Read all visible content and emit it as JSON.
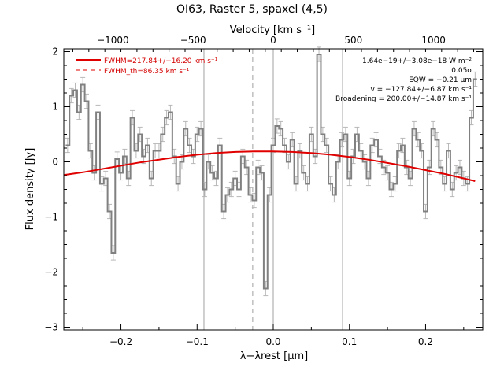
{
  "chart_data": {
    "type": "line",
    "title": "OI63, Raster 5, spaxel (4,5)",
    "xlabel": "λ−λrest [μm]",
    "ylabel": "Flux density [Jy]",
    "top_axis_label": "Velocity [km s⁻¹]",
    "xlim": [
      -0.275,
      0.275
    ],
    "ylim": [
      -3.05,
      2.05
    ],
    "x_ticks": [
      "−0.2",
      "−0.1",
      "0.0",
      "0.1",
      "0.2"
    ],
    "x_tick_values": [
      -0.2,
      -0.1,
      0.0,
      0.1,
      0.2
    ],
    "y_ticks": [
      "−3",
      "−2",
      "−1",
      "0",
      "1",
      "2"
    ],
    "y_tick_values": [
      -3,
      -2,
      -1,
      0,
      1,
      2
    ],
    "top_ticks": [
      "−1000",
      "−500",
      "0",
      "500",
      "1000"
    ],
    "top_tick_values": [
      -1000,
      -500,
      0,
      500,
      1000
    ],
    "velocity_per_um": 4750,
    "vertical_lines": [
      -0.091,
      0.0,
      0.091
    ],
    "dashed_vertical_line": -0.027,
    "grid": false,
    "legend_position": "top-left",
    "legend": [
      {
        "label": "FWHM=217.84+/−16.20 km s⁻¹",
        "style": "solid",
        "color": "#d40000"
      },
      {
        "label": "FWHM_th=86.35 km s⁻¹",
        "style": "dashed",
        "color": "#d40000"
      }
    ],
    "annotations": [
      "1.64e−19+/−3.08e−18 W m⁻²",
      "0.05σ",
      "EQW = −0.21 μm",
      "v = −127.84+/−6.87 km s⁻¹",
      "Broadening = 200.00+/−14.87 km s⁻¹"
    ],
    "series": [
      {
        "kind": "step-with-errorbars",
        "color": "#808080",
        "error": 0.13,
        "x": [
          -0.27,
          -0.265,
          -0.26,
          -0.255,
          -0.25,
          -0.245,
          -0.24,
          -0.235,
          -0.23,
          -0.225,
          -0.22,
          -0.215,
          -0.21,
          -0.205,
          -0.2,
          -0.195,
          -0.19,
          -0.185,
          -0.18,
          -0.175,
          -0.17,
          -0.165,
          -0.16,
          -0.155,
          -0.15,
          -0.145,
          -0.14,
          -0.135,
          -0.13,
          -0.125,
          -0.12,
          -0.115,
          -0.11,
          -0.105,
          -0.1,
          -0.095,
          -0.09,
          -0.085,
          -0.08,
          -0.075,
          -0.07,
          -0.065,
          -0.06,
          -0.055,
          -0.05,
          -0.045,
          -0.04,
          -0.035,
          -0.03,
          -0.025,
          -0.02,
          -0.015,
          -0.01,
          -0.005,
          0.0,
          0.005,
          0.01,
          0.015,
          0.02,
          0.025,
          0.03,
          0.035,
          0.04,
          0.045,
          0.05,
          0.055,
          0.06,
          0.065,
          0.07,
          0.075,
          0.08,
          0.085,
          0.09,
          0.095,
          0.1,
          0.105,
          0.11,
          0.115,
          0.12,
          0.125,
          0.13,
          0.135,
          0.14,
          0.145,
          0.15,
          0.155,
          0.16,
          0.165,
          0.17,
          0.175,
          0.18,
          0.185,
          0.19,
          0.195,
          0.2,
          0.205,
          0.21,
          0.215,
          0.22,
          0.225,
          0.23,
          0.235,
          0.24,
          0.245,
          0.25,
          0.255,
          0.26,
          0.265
        ],
        "values": [
          0.3,
          1.2,
          1.3,
          0.9,
          1.4,
          1.1,
          0.2,
          -0.2,
          0.9,
          -0.4,
          -0.3,
          -0.9,
          -1.65,
          0.05,
          -0.2,
          0.1,
          -0.3,
          0.8,
          0.2,
          0.5,
          0.1,
          0.3,
          -0.3,
          0.2,
          0.2,
          0.5,
          0.8,
          0.9,
          0.1,
          -0.4,
          0.0,
          0.6,
          0.3,
          0.1,
          0.5,
          0.6,
          -0.5,
          0.0,
          -0.2,
          -0.3,
          0.3,
          -0.9,
          -0.6,
          -0.5,
          -0.3,
          -0.5,
          0.1,
          -0.1,
          -0.6,
          -0.7,
          -0.1,
          -0.2,
          -2.3,
          -0.6,
          0.3,
          0.65,
          0.6,
          0.3,
          0.0,
          0.4,
          -0.4,
          0.2,
          -0.2,
          -0.4,
          0.5,
          0.1,
          1.95,
          0.5,
          0.3,
          -0.4,
          -0.6,
          0.0,
          0.4,
          0.5,
          -0.3,
          0.1,
          0.5,
          0.2,
          0.0,
          -0.3,
          0.3,
          0.4,
          0.1,
          -0.1,
          -0.2,
          -0.5,
          -0.4,
          0.2,
          0.3,
          -0.1,
          -0.3,
          0.6,
          0.4,
          0.2,
          -0.9,
          -0.1,
          0.6,
          0.4,
          -0.1,
          -0.4,
          0.2,
          -0.5,
          -0.2,
          -0.1,
          -0.3,
          -0.4,
          0.8,
          1.5
        ]
      },
      {
        "kind": "gaussian-fit",
        "color": "#e00000",
        "x": [
          -0.275,
          -0.25,
          -0.225,
          -0.2,
          -0.175,
          -0.15,
          -0.125,
          -0.1,
          -0.075,
          -0.05,
          -0.025,
          0.0,
          0.025,
          0.05,
          0.075,
          0.1,
          0.125,
          0.15,
          0.175,
          0.2,
          0.225,
          0.25,
          0.265
        ],
        "values": [
          -0.24,
          -0.19,
          -0.13,
          -0.07,
          -0.01,
          0.04,
          0.09,
          0.13,
          0.16,
          0.18,
          0.19,
          0.19,
          0.18,
          0.16,
          0.13,
          0.09,
          0.04,
          -0.02,
          -0.08,
          -0.15,
          -0.22,
          -0.3,
          -0.35
        ]
      }
    ]
  }
}
